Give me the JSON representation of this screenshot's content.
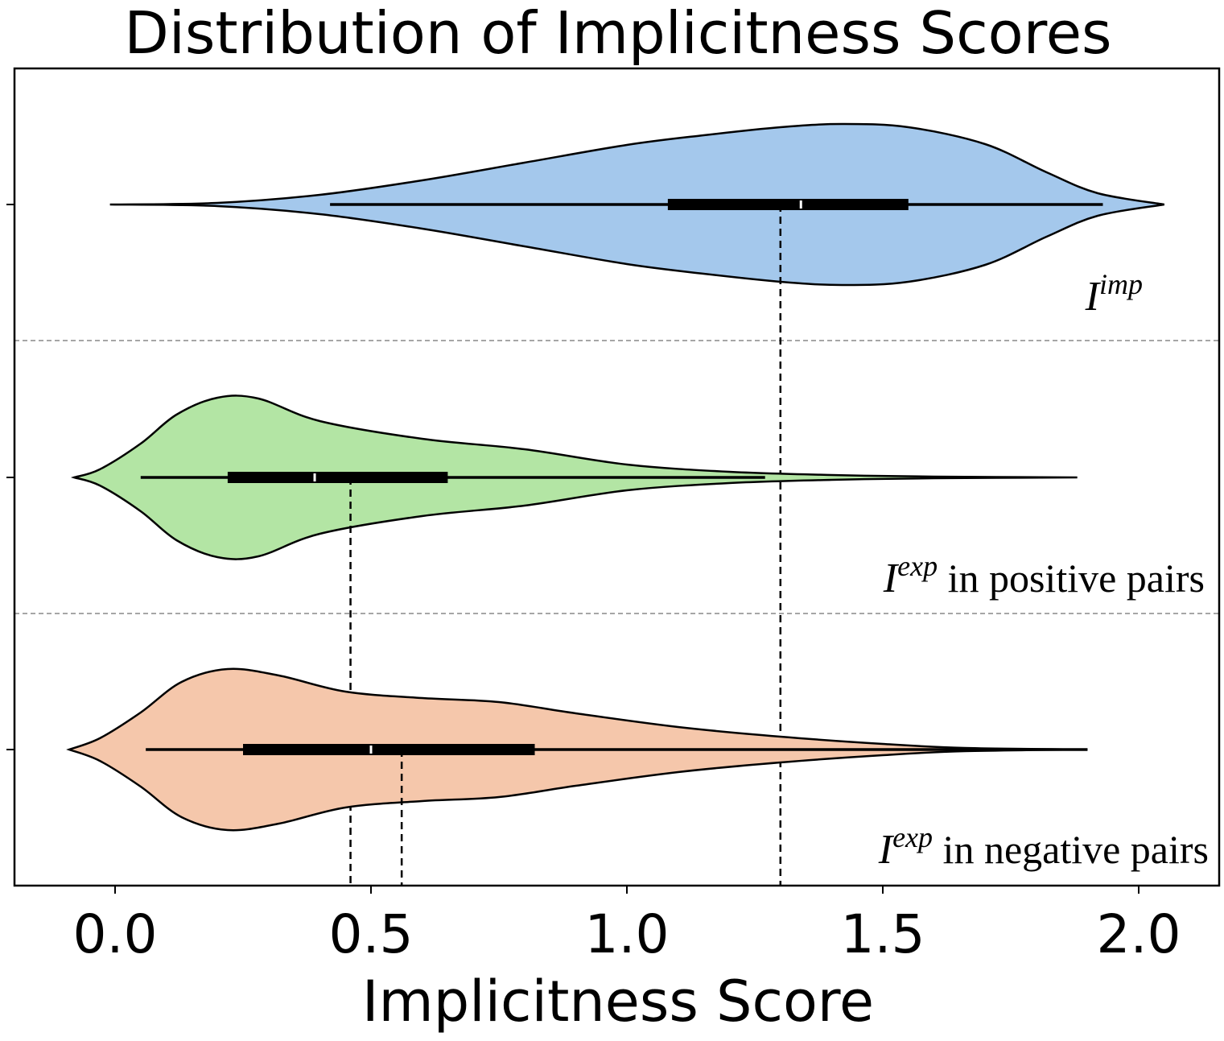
{
  "chart_data": {
    "type": "violin",
    "orientation": "horizontal",
    "title": "Distribution of Implicitness Scores",
    "xlabel": "Implicitness Score",
    "ylabel": "",
    "xlim": [
      -0.2,
      2.15
    ],
    "xticks": [
      0.0,
      0.5,
      1.0,
      1.5,
      2.0
    ],
    "xtick_labels": [
      "0.0",
      "0.5",
      "1.0",
      "1.5",
      "2.0"
    ],
    "series": [
      {
        "name": "imp",
        "label_base": "I",
        "label_sup": "imp",
        "label_suffix": "",
        "color": "#a4c8ec",
        "min": 0.42,
        "q1": 1.08,
        "median": 1.34,
        "q3": 1.55,
        "max": 1.93,
        "mean": 1.3,
        "density_x": [
          -0.01,
          0.2,
          0.4,
          0.6,
          0.8,
          1.0,
          1.15,
          1.3,
          1.42,
          1.55,
          1.7,
          1.82,
          1.92,
          2.05
        ],
        "density_w": [
          0.0,
          0.02,
          0.12,
          0.3,
          0.52,
          0.74,
          0.86,
          0.96,
          1.0,
          0.96,
          0.75,
          0.4,
          0.14,
          0.0
        ]
      },
      {
        "name": "exp_pos",
        "label_base": "I",
        "label_sup": "exp",
        "label_suffix": " in positive pairs",
        "color": "#b3e5a4",
        "min": 0.05,
        "q1": 0.22,
        "median": 0.39,
        "q3": 0.65,
        "max": 1.27,
        "mean": 0.46,
        "density_x": [
          -0.08,
          -0.03,
          0.05,
          0.12,
          0.2,
          0.28,
          0.4,
          0.6,
          0.8,
          1.0,
          1.2,
          1.4,
          1.6,
          1.88
        ],
        "density_w": [
          0.0,
          0.1,
          0.42,
          0.78,
          0.99,
          0.98,
          0.7,
          0.48,
          0.35,
          0.16,
          0.07,
          0.03,
          0.01,
          0.0
        ]
      },
      {
        "name": "exp_neg",
        "label_base": "I",
        "label_sup": "exp",
        "label_suffix": " in negative pairs",
        "color": "#f5c7ab",
        "min": 0.06,
        "q1": 0.25,
        "median": 0.5,
        "q3": 0.82,
        "max": 1.9,
        "mean": 0.56,
        "density_x": [
          -0.09,
          -0.03,
          0.05,
          0.13,
          0.22,
          0.32,
          0.45,
          0.6,
          0.75,
          0.9,
          1.1,
          1.3,
          1.5,
          1.66,
          1.9
        ],
        "density_w": [
          0.0,
          0.14,
          0.46,
          0.84,
          1.0,
          0.92,
          0.72,
          0.64,
          0.59,
          0.45,
          0.28,
          0.16,
          0.07,
          0.02,
          0.0
        ]
      }
    ],
    "mean_lines": "dashed vertical",
    "separators": "dashed horizontal",
    "grid": false,
    "legend": "none"
  }
}
